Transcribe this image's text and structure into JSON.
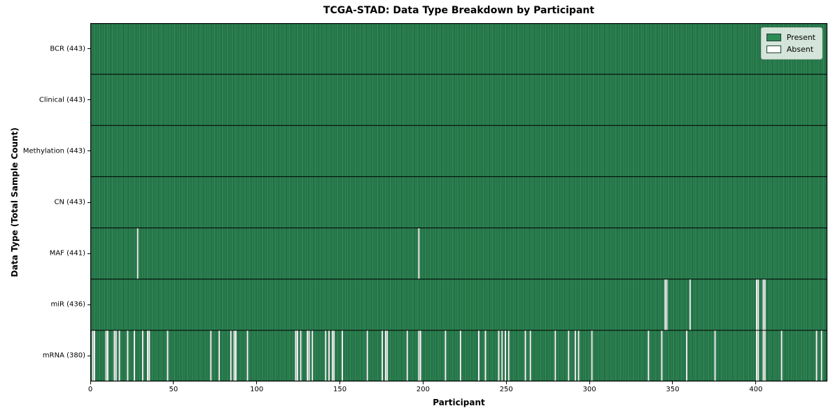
{
  "colors": {
    "present": "#2e8b57",
    "absent": "#ffffff",
    "bar_edge": "#10301f",
    "spine": "#000000"
  },
  "chart_data": {
    "type": "heatmap",
    "title": "TCGA-STAD: Data Type Breakdown by Participant",
    "xlabel": "Participant",
    "ylabel": "Data Type (Total Sample Count)",
    "legend_labels": [
      "Present",
      "Absent"
    ],
    "legend_position": "upper right",
    "grid": false,
    "n_participants": 443,
    "x_range": [
      0,
      443
    ],
    "x_ticks": [
      0,
      50,
      100,
      150,
      200,
      250,
      300,
      350,
      400
    ],
    "rows": [
      {
        "label": "BCR (443)",
        "data_type": "BCR",
        "present_count": 443,
        "absent_participants": []
      },
      {
        "label": "Clinical (443)",
        "data_type": "Clinical",
        "present_count": 443,
        "absent_participants": []
      },
      {
        "label": "Methylation (443)",
        "data_type": "Methylation",
        "present_count": 443,
        "absent_participants": []
      },
      {
        "label": "CN (443)",
        "data_type": "CN",
        "present_count": 443,
        "absent_participants": []
      },
      {
        "label": "MAF (441)",
        "data_type": "MAF",
        "present_count": 441,
        "absent_participants": [
          28,
          197
        ]
      },
      {
        "label": "miR (436)",
        "data_type": "miR",
        "present_count": 436,
        "absent_participants": [
          345,
          346,
          360,
          400,
          401,
          404,
          405
        ]
      },
      {
        "label": "mRNA (380)",
        "data_type": "mRNA",
        "present_count": 380,
        "absent_participants": [
          1,
          2,
          9,
          10,
          14,
          15,
          17,
          22,
          26,
          31,
          34,
          35,
          46,
          72,
          77,
          84,
          86,
          87,
          94,
          123,
          124,
          126,
          130,
          131,
          133,
          141,
          143,
          145,
          146,
          151,
          166,
          175,
          177,
          178,
          190,
          197,
          198,
          213,
          222,
          233,
          237,
          245,
          247,
          249,
          251,
          261,
          264,
          279,
          287,
          291,
          293,
          301,
          335,
          343,
          358,
          375,
          400,
          401,
          404,
          405,
          415,
          436,
          439
        ]
      }
    ]
  }
}
